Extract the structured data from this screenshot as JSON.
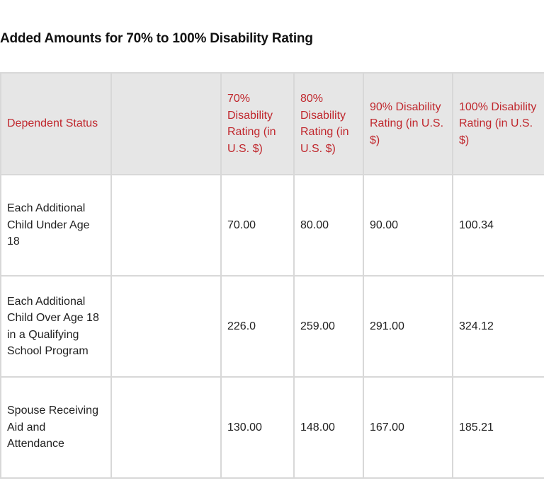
{
  "title": "Added Amounts for 70% to 100% Disability Rating",
  "table": {
    "headers": [
      "Dependent Status",
      "",
      "70% Disability Rating (in U.S. $)",
      "80% Disability Rating (in U.S. $)",
      "90% Disability Rating (in U.S. $)",
      "100% Disability Rating (in U.S. $)"
    ],
    "rows": [
      {
        "status": "Each Additional Child Under Age 18",
        "blank": "",
        "r70": "70.00",
        "r80": "80.00",
        "r90": "90.00",
        "r100": "100.34"
      },
      {
        "status": "Each Additional Child Over Age 18 in a Qualifying School Program",
        "blank": "",
        "r70": "226.0",
        "r80": "259.00",
        "r90": "291.00",
        "r100": "324.12"
      },
      {
        "status": "Spouse Receiving Aid and Attendance",
        "blank": "",
        "r70": "130.00",
        "r80": "148.00",
        "r90": "167.00",
        "r100": "185.21"
      }
    ]
  },
  "colors": {
    "header_text": "#c0272d",
    "header_bg": "#e6e6e6",
    "border": "#d8d8d8"
  }
}
